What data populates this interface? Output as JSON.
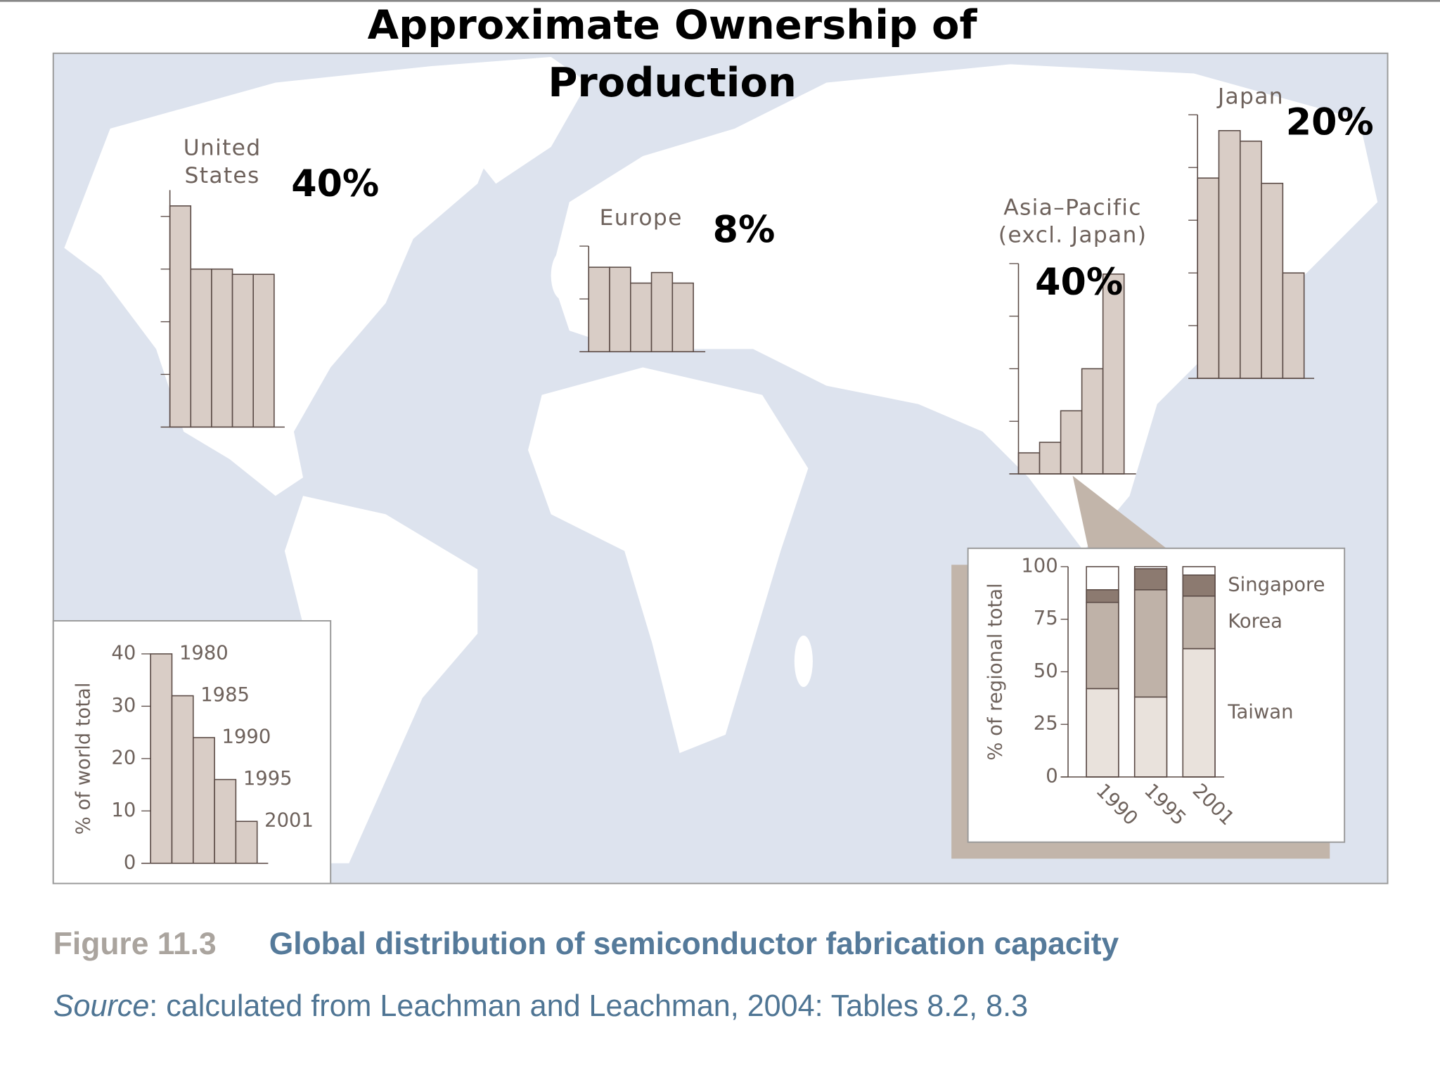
{
  "title_lines": [
    "Approximate Ownership of",
    "Production"
  ],
  "figure_label": "Figure 11.3",
  "caption": "Global distribution of semiconductor fabrication capacity",
  "source_label": "Source",
  "source_text": ": calculated from Leachman and Leachman, 2004: Tables 8.2, 8.3",
  "chart_data": [
    {
      "type": "bar",
      "ylabel": "% of world total",
      "categories": [
        "1980",
        "1985",
        "1990",
        "1995",
        "2001"
      ],
      "values": [
        40,
        32,
        24,
        16,
        8
      ],
      "ylim": [
        0,
        40
      ],
      "yticks": [
        0,
        10,
        20,
        30,
        40
      ],
      "color": "#d9cdc6"
    },
    {
      "type": "bar",
      "title_lines": [
        "United",
        "States"
      ],
      "annotation": "40%",
      "values": [
        42,
        30,
        30,
        29,
        29
      ],
      "ylim": [
        0,
        45
      ],
      "yticks": [
        10,
        20,
        30,
        40
      ],
      "tick_labels": false,
      "color": "#d9cdc6"
    },
    {
      "type": "bar",
      "title_lines": [
        "Europe"
      ],
      "annotation": "8%",
      "values": [
        16,
        16,
        13,
        15,
        13
      ],
      "ylim": [
        0,
        20
      ],
      "yticks": [
        10,
        20
      ],
      "tick_labels": false,
      "color": "#d9cdc6"
    },
    {
      "type": "bar",
      "title_lines": [
        "Asia–Pacific",
        "(excl. Japan)"
      ],
      "annotation": "40%",
      "values": [
        4,
        6,
        12,
        20,
        38
      ],
      "ylim": [
        0,
        40
      ],
      "yticks": [
        10,
        20,
        30,
        40
      ],
      "tick_labels": false,
      "color": "#d9cdc6"
    },
    {
      "type": "bar",
      "title_lines": [
        "Japan"
      ],
      "annotation": "20%",
      "values": [
        38,
        47,
        45,
        37,
        20
      ],
      "ylim": [
        0,
        50
      ],
      "yticks": [
        10,
        20,
        30,
        40,
        50
      ],
      "tick_labels": false,
      "color": "#d9cdc6"
    },
    {
      "type": "stacked_bar",
      "ylabel": "% of regional total",
      "categories": [
        "1990",
        "1995",
        "2001"
      ],
      "series": [
        {
          "name": "Taiwan",
          "color": "#e9e2dc",
          "values": [
            42,
            38,
            61
          ]
        },
        {
          "name": "Korea",
          "color": "#bfb2a8",
          "values": [
            41,
            51,
            25
          ]
        },
        {
          "name": "Singapore",
          "color": "#8c7a70",
          "values": [
            6,
            10,
            10
          ]
        }
      ],
      "ylim": [
        0,
        100
      ],
      "yticks": [
        0,
        25,
        50,
        75,
        100
      ]
    }
  ]
}
